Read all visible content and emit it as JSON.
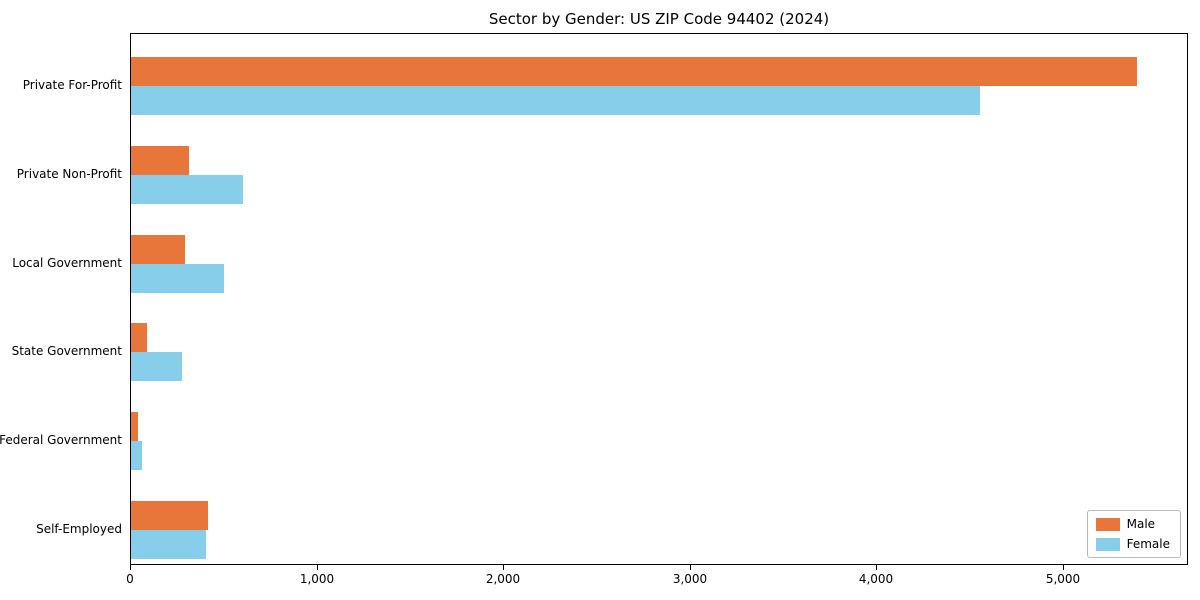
{
  "chart_data": {
    "type": "bar",
    "orientation": "horizontal",
    "title": "Sector by Gender: US ZIP Code 94402 (2024)",
    "categories": [
      "Private For-Profit",
      "Private Non-Profit",
      "Local Government",
      "State Government",
      "Federal Government",
      "Self-Employed"
    ],
    "series": [
      {
        "name": "Male",
        "color": "#E8763B",
        "values": [
          5390,
          310,
          290,
          85,
          35,
          410
        ]
      },
      {
        "name": "Female",
        "color": "#87CEEB",
        "values": [
          4550,
          600,
          500,
          275,
          60,
          400
        ]
      }
    ],
    "xlabel": "",
    "ylabel": "",
    "xlim": [
      0,
      5670
    ],
    "xticks": [
      0,
      1000,
      2000,
      3000,
      4000,
      5000
    ],
    "xtick_labels": [
      "0",
      "1,000",
      "2,000",
      "3,000",
      "4,000",
      "5,000"
    ],
    "grid": false,
    "legend_position": "lower right",
    "legend_entries": [
      "Male",
      "Female"
    ]
  }
}
